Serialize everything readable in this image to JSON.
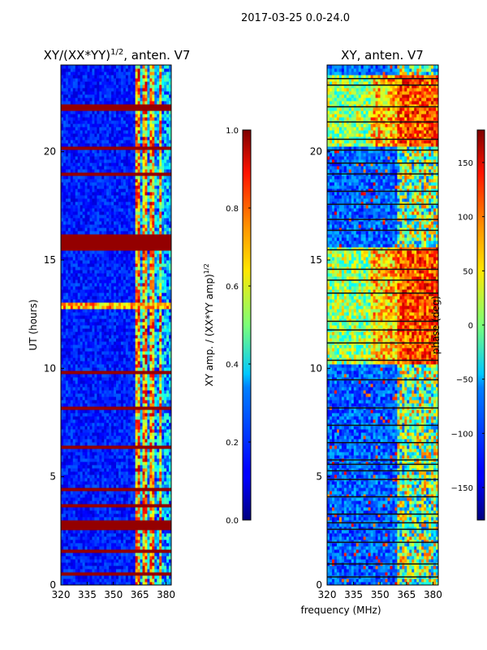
{
  "figure_title": "2017-03-25 0.0-24.0",
  "shared_xlabel": "frequency (MHz)",
  "chart_data": [
    {
      "type": "heatmap",
      "title_main": "XY/(XX*YY)",
      "title_sup": "1/2",
      "title_tail": ", anten. V7",
      "xlabel": "frequency (MHz)",
      "ylabel": "UT (hours)",
      "xlim": [
        320,
        383
      ],
      "ylim": [
        0,
        24
      ],
      "xticks": [
        320,
        335,
        350,
        365,
        380
      ],
      "yticks": [
        0,
        5,
        10,
        15,
        20
      ],
      "colorbar": {
        "label_main": "XY amp. / (XX*YY amp)",
        "label_sup": "1/2",
        "range": [
          0.0,
          1.0
        ],
        "ticks": [
          "0.0",
          "0.2",
          "0.4",
          "0.6",
          "0.8",
          "1.0"
        ]
      },
      "saturated_bands_hours": [
        [
          0.45,
          0.55
        ],
        [
          1.45,
          1.65
        ],
        [
          2.55,
          3.05
        ],
        [
          3.6,
          3.7
        ],
        [
          4.4,
          4.5
        ],
        [
          6.35,
          6.45
        ],
        [
          8.1,
          8.3
        ],
        [
          9.8,
          9.95
        ],
        [
          12.1,
          12.15
        ],
        [
          15.5,
          16.2
        ],
        [
          18.95,
          19.1
        ],
        [
          20.1,
          20.25
        ],
        [
          21.95,
          22.2
        ]
      ],
      "bright_columns_mhz": [
        [
          363,
          365
        ],
        [
          367,
          369
        ],
        [
          371,
          373
        ],
        [
          376,
          378
        ]
      ]
    },
    {
      "type": "heatmap",
      "title": "XY, anten. V7",
      "xlabel": "frequency (MHz)",
      "ylabel": "",
      "xlim": [
        320,
        383
      ],
      "ylim": [
        0,
        24
      ],
      "xticks": [
        320,
        335,
        350,
        365,
        380
      ],
      "yticks": [
        0,
        5,
        10,
        15,
        20
      ],
      "colorbar": {
        "label": "phase (deg)",
        "range": [
          -180,
          180
        ],
        "ticks": [
          "−150",
          "−100",
          "−50",
          "0",
          "50",
          "100",
          "150"
        ]
      },
      "high_phase_regions": [
        [
          10.2,
          15.6
        ],
        [
          20.2,
          23.5
        ]
      ],
      "gap_lines_hours": [
        0.4,
        1.0,
        2.0,
        2.6,
        2.9,
        3.3,
        4.1,
        4.9,
        5.3,
        5.6,
        5.8,
        6.6,
        7.4,
        8.2,
        9.5,
        10.4,
        11.2,
        11.8,
        12.2,
        13.5,
        14.1,
        14.6,
        15.5,
        16.4,
        16.9,
        17.6,
        18.2,
        19.0,
        19.5,
        20.1,
        20.6,
        21.4,
        22.1,
        23.1,
        23.4
      ]
    }
  ]
}
